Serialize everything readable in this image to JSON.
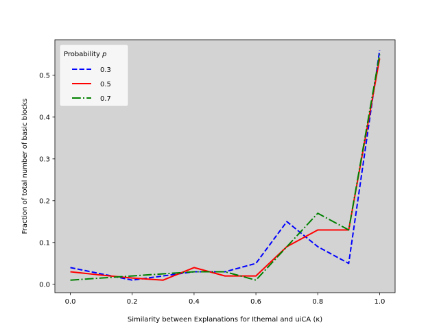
{
  "chart_data": {
    "type": "line",
    "title": "",
    "xlabel": "Similarity between Explanations for Ithemal and uiCA (κ)",
    "ylabel": "Fraction of total number of basic blocks",
    "xlim": [
      -0.05,
      1.05
    ],
    "ylim": [
      -0.02,
      0.585
    ],
    "grid": false,
    "plot_background": "#d3d3d3",
    "xticks": [
      0.0,
      0.2,
      0.4,
      0.6,
      0.8,
      1.0
    ],
    "xtick_labels": [
      "0.0",
      "0.2",
      "0.4",
      "0.6",
      "0.8",
      "1.0"
    ],
    "yticks": [
      0.0,
      0.1,
      0.2,
      0.3,
      0.4,
      0.5
    ],
    "ytick_labels": [
      "0.0",
      "0.1",
      "0.2",
      "0.3",
      "0.4",
      "0.5"
    ],
    "legend": {
      "title_prefix": "Probability",
      "title_var": "p",
      "placement": "upper-left"
    },
    "x": [
      0.0,
      0.1,
      0.2,
      0.3,
      0.4,
      0.5,
      0.6,
      0.7,
      0.8,
      0.9,
      1.0
    ],
    "series": [
      {
        "name": "0.3",
        "color": "#0000ff",
        "style": "dashed",
        "values": [
          0.04,
          0.025,
          0.01,
          0.02,
          0.03,
          0.03,
          0.05,
          0.15,
          0.09,
          0.05,
          0.56
        ]
      },
      {
        "name": "0.5",
        "color": "#ff0000",
        "style": "solid",
        "values": [
          0.03,
          0.022,
          0.015,
          0.01,
          0.04,
          0.02,
          0.02,
          0.09,
          0.13,
          0.13,
          0.54
        ]
      },
      {
        "name": "0.7",
        "color": "#008000",
        "style": "dashdot",
        "values": [
          0.01,
          0.015,
          0.02,
          0.025,
          0.03,
          0.03,
          0.01,
          0.09,
          0.17,
          0.13,
          0.55
        ]
      }
    ]
  }
}
